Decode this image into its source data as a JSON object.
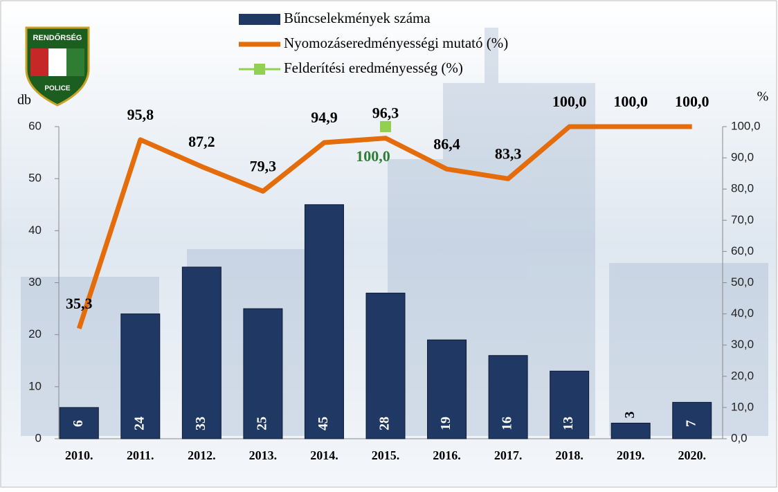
{
  "logo": {
    "top": "RENDŐRSÉG",
    "bottom": "POLICE"
  },
  "chart_data": {
    "type": "bar",
    "ylabel": "db",
    "y2label": "%",
    "categories": [
      "2010.",
      "2011.",
      "2012.",
      "2013.",
      "2014.",
      "2015.",
      "2016.",
      "2017.",
      "2018.",
      "2019.",
      "2020."
    ],
    "ylim": [
      0,
      60
    ],
    "yticks": [
      0,
      10,
      20,
      30,
      40,
      50,
      60
    ],
    "y2lim": [
      0,
      100
    ],
    "y2ticks": [
      {
        "value": 0,
        "label": "0,0"
      },
      {
        "value": 10,
        "label": "10,0"
      },
      {
        "value": 20,
        "label": "20,0"
      },
      {
        "value": 30,
        "label": "30,0"
      },
      {
        "value": 40,
        "label": "40,0"
      },
      {
        "value": 50,
        "label": "50,0"
      },
      {
        "value": 60,
        "label": "60,0"
      },
      {
        "value": 70,
        "label": "70,0"
      },
      {
        "value": 80,
        "label": "80,0"
      },
      {
        "value": 90,
        "label": "90,0"
      },
      {
        "value": 100,
        "label": "100,0"
      }
    ],
    "series": [
      {
        "name": "Bűncselekmények száma",
        "type": "bar",
        "color": "#1f3864",
        "values": [
          6,
          24,
          33,
          25,
          45,
          28,
          19,
          16,
          13,
          3,
          7
        ]
      },
      {
        "name": "Nyomozáseredményességi mutató (%)",
        "type": "line",
        "axis": "y2",
        "color": "#e46c0a",
        "values": [
          35.3,
          95.8,
          87.2,
          79.3,
          94.9,
          96.3,
          86.4,
          83.3,
          100,
          100,
          100
        ],
        "value_labels": [
          "35,3",
          "95,8",
          "87,2",
          "79,3",
          "94,9",
          "96,3",
          "86,4",
          "83,3",
          "100,0",
          "100,0",
          "100,0"
        ]
      },
      {
        "name": "Felderítési eredményesség (%)",
        "type": "scatter",
        "axis": "y2",
        "color": "#92d050",
        "values": [
          null,
          null,
          null,
          null,
          null,
          100,
          null,
          null,
          null,
          null,
          null
        ],
        "value_labels": [
          null,
          null,
          null,
          null,
          null,
          "100,0",
          null,
          null,
          null,
          null,
          null
        ]
      }
    ]
  }
}
